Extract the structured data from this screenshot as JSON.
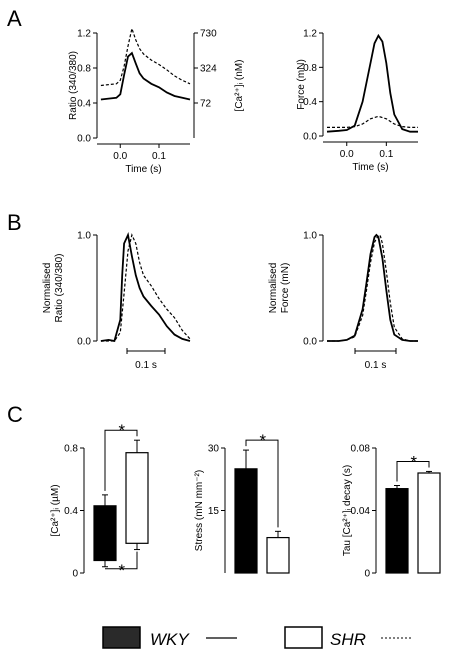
{
  "panels": {
    "a": "A",
    "b": "B",
    "c": "C"
  },
  "legend": [
    {
      "label": "WKY",
      "fill": "#2a2a2a",
      "line": "solid"
    },
    {
      "label": "SHR",
      "fill": "#ffffff",
      "line": "dashed"
    }
  ],
  "chart_data": [
    {
      "id": "a-ratio",
      "type": "line",
      "xlabel": "Time (s)",
      "ylabel": "Ratio (340/380)",
      "y2label": "[Ca²⁺]ᵢ (nM)",
      "xlim": [
        -0.06,
        0.18
      ],
      "ylim": [
        0.0,
        1.2
      ],
      "xticks": [
        "0.0",
        "0.1"
      ],
      "xtick_values": [
        0.0,
        0.1
      ],
      "yticks": [
        "0.0",
        "0.4",
        "0.8",
        "1.2"
      ],
      "ytick_values": [
        0.0,
        0.4,
        0.8,
        1.2
      ],
      "y2ticks": [
        "72",
        "324",
        "730"
      ],
      "y2tick_values": [
        0.4,
        0.8,
        1.2
      ],
      "series": [
        {
          "line": "solid",
          "x": [
            -0.05,
            -0.03,
            -0.01,
            0.0,
            0.01,
            0.02,
            0.03,
            0.04,
            0.05,
            0.06,
            0.08,
            0.1,
            0.12,
            0.14,
            0.16,
            0.18
          ],
          "y": [
            0.44,
            0.45,
            0.46,
            0.5,
            0.72,
            0.93,
            0.97,
            0.85,
            0.74,
            0.68,
            0.62,
            0.58,
            0.52,
            0.48,
            0.46,
            0.44
          ]
        },
        {
          "line": "dashed",
          "x": [
            -0.05,
            -0.03,
            -0.01,
            0.0,
            0.01,
            0.02,
            0.03,
            0.04,
            0.05,
            0.06,
            0.08,
            0.1,
            0.12,
            0.14,
            0.16,
            0.18
          ],
          "y": [
            0.6,
            0.61,
            0.62,
            0.66,
            0.82,
            1.05,
            1.25,
            1.12,
            1.02,
            0.96,
            0.89,
            0.84,
            0.78,
            0.71,
            0.66,
            0.62
          ]
        }
      ]
    },
    {
      "id": "a-force",
      "type": "line",
      "xlabel": "Time (s)",
      "ylabel": "Force (mN)",
      "xlim": [
        -0.06,
        0.18
      ],
      "ylim": [
        0.0,
        1.2
      ],
      "xticks": [
        "0.0",
        "0.1"
      ],
      "xtick_values": [
        0.0,
        0.1
      ],
      "yticks": [
        "0.0",
        "0.4",
        "0.8",
        "1.2"
      ],
      "ytick_values": [
        0.0,
        0.4,
        0.8,
        1.2
      ],
      "series": [
        {
          "line": "solid",
          "x": [
            -0.05,
            -0.02,
            0.0,
            0.02,
            0.04,
            0.06,
            0.07,
            0.08,
            0.09,
            0.1,
            0.11,
            0.12,
            0.14,
            0.16,
            0.18
          ],
          "y": [
            0.05,
            0.06,
            0.07,
            0.12,
            0.4,
            0.85,
            1.08,
            1.17,
            1.1,
            0.85,
            0.5,
            0.25,
            0.08,
            0.05,
            0.05
          ]
        },
        {
          "line": "dashed",
          "x": [
            -0.05,
            -0.02,
            0.0,
            0.02,
            0.04,
            0.06,
            0.08,
            0.1,
            0.12,
            0.14,
            0.16,
            0.18
          ],
          "y": [
            0.1,
            0.1,
            0.1,
            0.11,
            0.14,
            0.2,
            0.23,
            0.2,
            0.14,
            0.11,
            0.1,
            0.1
          ]
        }
      ]
    },
    {
      "id": "b-ratio",
      "type": "line",
      "ylabel": "Normalised Ratio (340/380)",
      "scalebar": "0.1 s",
      "xlim": [
        -0.06,
        0.18
      ],
      "ylim": [
        0.0,
        1.0
      ],
      "yticks": [
        "0.0",
        "1.0"
      ],
      "ytick_values": [
        0.0,
        1.0
      ],
      "series": [
        {
          "line": "solid",
          "x": [
            -0.05,
            -0.03,
            -0.015,
            0.0,
            0.005,
            0.01,
            0.02,
            0.03,
            0.04,
            0.05,
            0.06,
            0.08,
            0.1,
            0.12,
            0.14,
            0.16,
            0.18
          ],
          "y": [
            0.0,
            0.01,
            0.0,
            0.2,
            0.62,
            0.92,
            1.0,
            0.8,
            0.62,
            0.5,
            0.42,
            0.33,
            0.25,
            0.14,
            0.06,
            0.02,
            0.0
          ]
        },
        {
          "line": "dashed",
          "x": [
            -0.05,
            -0.03,
            -0.015,
            0.0,
            0.01,
            0.02,
            0.03,
            0.04,
            0.05,
            0.06,
            0.08,
            0.1,
            0.12,
            0.14,
            0.16,
            0.18
          ],
          "y": [
            0.0,
            0.0,
            0.0,
            0.08,
            0.45,
            0.85,
            1.0,
            0.92,
            0.74,
            0.62,
            0.52,
            0.4,
            0.3,
            0.22,
            0.1,
            0.02
          ]
        }
      ]
    },
    {
      "id": "b-force",
      "type": "line",
      "ylabel": "Normalised Force (mN)",
      "scalebar": "0.1 s",
      "xlim": [
        -0.06,
        0.18
      ],
      "ylim": [
        0.0,
        1.0
      ],
      "yticks": [
        "0.0",
        "1.0"
      ],
      "ytick_values": [
        0.0,
        1.0
      ],
      "series": [
        {
          "line": "solid",
          "x": [
            -0.05,
            -0.02,
            0.0,
            0.02,
            0.04,
            0.05,
            0.06,
            0.07,
            0.075,
            0.08,
            0.09,
            0.1,
            0.11,
            0.12,
            0.14,
            0.16,
            0.18
          ],
          "y": [
            0.0,
            0.0,
            0.01,
            0.05,
            0.3,
            0.55,
            0.82,
            0.98,
            1.0,
            0.98,
            0.78,
            0.48,
            0.2,
            0.06,
            0.01,
            0.0,
            0.0
          ]
        },
        {
          "line": "dashed",
          "x": [
            -0.05,
            -0.02,
            0.0,
            0.02,
            0.04,
            0.05,
            0.06,
            0.07,
            0.08,
            0.085,
            0.09,
            0.1,
            0.11,
            0.12,
            0.14,
            0.16,
            0.18
          ],
          "y": [
            0.0,
            0.0,
            0.01,
            0.04,
            0.24,
            0.48,
            0.74,
            0.93,
            1.0,
            0.99,
            0.92,
            0.66,
            0.36,
            0.13,
            0.02,
            0.0,
            0.0
          ]
        }
      ]
    },
    {
      "id": "c-calcium",
      "type": "bar",
      "ylabel": "[Ca²⁺]ᵢ (µM)",
      "ylim": [
        0,
        0.8
      ],
      "yticks": [
        "0",
        "0.4",
        "0.8"
      ],
      "ytick_values": [
        0,
        0.4,
        0.8
      ],
      "categories": [
        "WKY",
        "SHR"
      ],
      "bar_style": "floating",
      "bars": [
        {
          "low": 0.08,
          "high": 0.43,
          "err_high": 0.5,
          "err_low": 0.04,
          "fill": "#000000"
        },
        {
          "low": 0.19,
          "high": 0.77,
          "err_high": 0.85,
          "err_low": 0.15,
          "fill": "#ffffff"
        }
      ],
      "significance": [
        "*",
        "*"
      ]
    },
    {
      "id": "c-stress",
      "type": "bar",
      "ylabel": "Stress (mN mm⁻²)",
      "ylim": [
        0,
        30
      ],
      "yticks": [
        "15",
        "30"
      ],
      "ytick_values": [
        15,
        30
      ],
      "categories": [
        "WKY",
        "SHR"
      ],
      "bars": [
        {
          "value": 25.0,
          "err": 4.5,
          "fill": "#000000"
        },
        {
          "value": 8.5,
          "err": 1.5,
          "fill": "#ffffff"
        }
      ],
      "significance": [
        "*"
      ]
    },
    {
      "id": "c-tau",
      "type": "bar",
      "ylabel": "Tau [Ca²⁺]ᵢ decay (s)",
      "ylim": [
        0,
        0.08
      ],
      "yticks": [
        "0",
        "0.04",
        "0.08"
      ],
      "ytick_values": [
        0,
        0.04,
        0.08
      ],
      "categories": [
        "WKY",
        "SHR"
      ],
      "bars": [
        {
          "value": 0.054,
          "err": 0.002,
          "fill": "#000000"
        },
        {
          "value": 0.064,
          "err": 0.001,
          "fill": "#ffffff"
        }
      ],
      "significance": [
        "*"
      ]
    }
  ]
}
